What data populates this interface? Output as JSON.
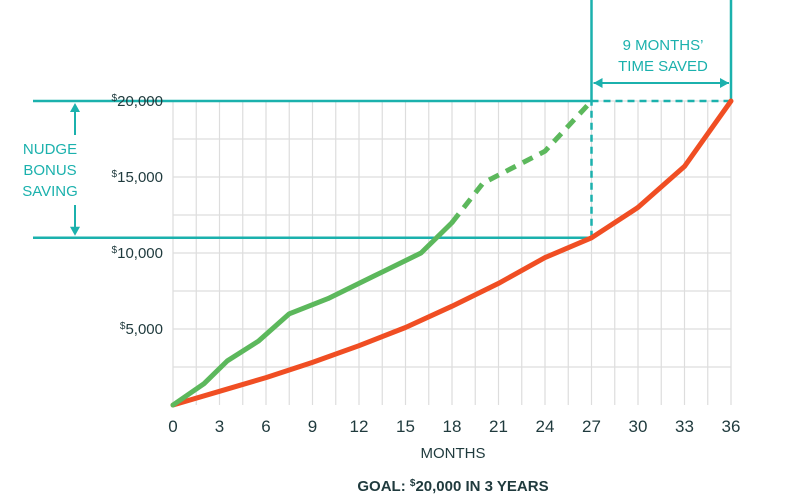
{
  "chart_data": {
    "type": "line",
    "xlabel": "MONTHS",
    "goal_prefix": "GOAL: ",
    "goal_dollar": "$",
    "goal_rest": "20,000 IN 3 YEARS",
    "x_ticks": [
      0,
      3,
      6,
      9,
      12,
      15,
      18,
      21,
      24,
      27,
      30,
      33,
      36
    ],
    "xlim": [
      0,
      36
    ],
    "y_ticks": [
      {
        "value": 5000,
        "currency": "$",
        "label": "5,000"
      },
      {
        "value": 10000,
        "currency": "$",
        "label": "10,000"
      },
      {
        "value": 15000,
        "currency": "$",
        "label": "15,000"
      },
      {
        "value": 20000,
        "currency": "$",
        "label": "20,000"
      }
    ],
    "ylim": [
      0,
      20000
    ],
    "grid": true,
    "series": [
      {
        "color": "#f04e23",
        "style": "solid",
        "points": [
          [
            0,
            0
          ],
          [
            3,
            900
          ],
          [
            6,
            1800
          ],
          [
            9,
            2800
          ],
          [
            12,
            3900
          ],
          [
            15,
            5100
          ],
          [
            18,
            6500
          ],
          [
            21,
            8000
          ],
          [
            24,
            9700
          ],
          [
            27,
            11000
          ],
          [
            30,
            13000
          ],
          [
            33,
            15700
          ],
          [
            36,
            20000
          ]
        ]
      },
      {
        "color": "#5cb85c",
        "style": "solid",
        "points": [
          [
            0,
            0
          ],
          [
            2,
            1400
          ],
          [
            3.5,
            2900
          ],
          [
            5.5,
            4200
          ],
          [
            7.5,
            6000
          ],
          [
            10,
            7000
          ],
          [
            13,
            8500
          ],
          [
            16,
            10000
          ],
          [
            18,
            12000
          ]
        ]
      },
      {
        "color": "#5cb85c",
        "style": "dashed",
        "points": [
          [
            18,
            12000
          ],
          [
            20,
            14600
          ],
          [
            24,
            16700
          ],
          [
            27,
            20000
          ]
        ]
      }
    ],
    "annotations": {
      "nudge_line1": "NUDGE",
      "nudge_line2": "BONUS",
      "nudge_line3": "SAVING",
      "time_line1": "9 MONTHS’",
      "time_line2": "TIME SAVED",
      "ref_low_value": 11000,
      "ref_high_value": 20000,
      "ref_month_start": 27,
      "ref_month_end": 36
    },
    "colors": {
      "teal": "#1bb1ad",
      "red": "#f04e23",
      "green": "#5cb85c",
      "grid": "#dddddd",
      "text": "#1f3a3d"
    }
  }
}
